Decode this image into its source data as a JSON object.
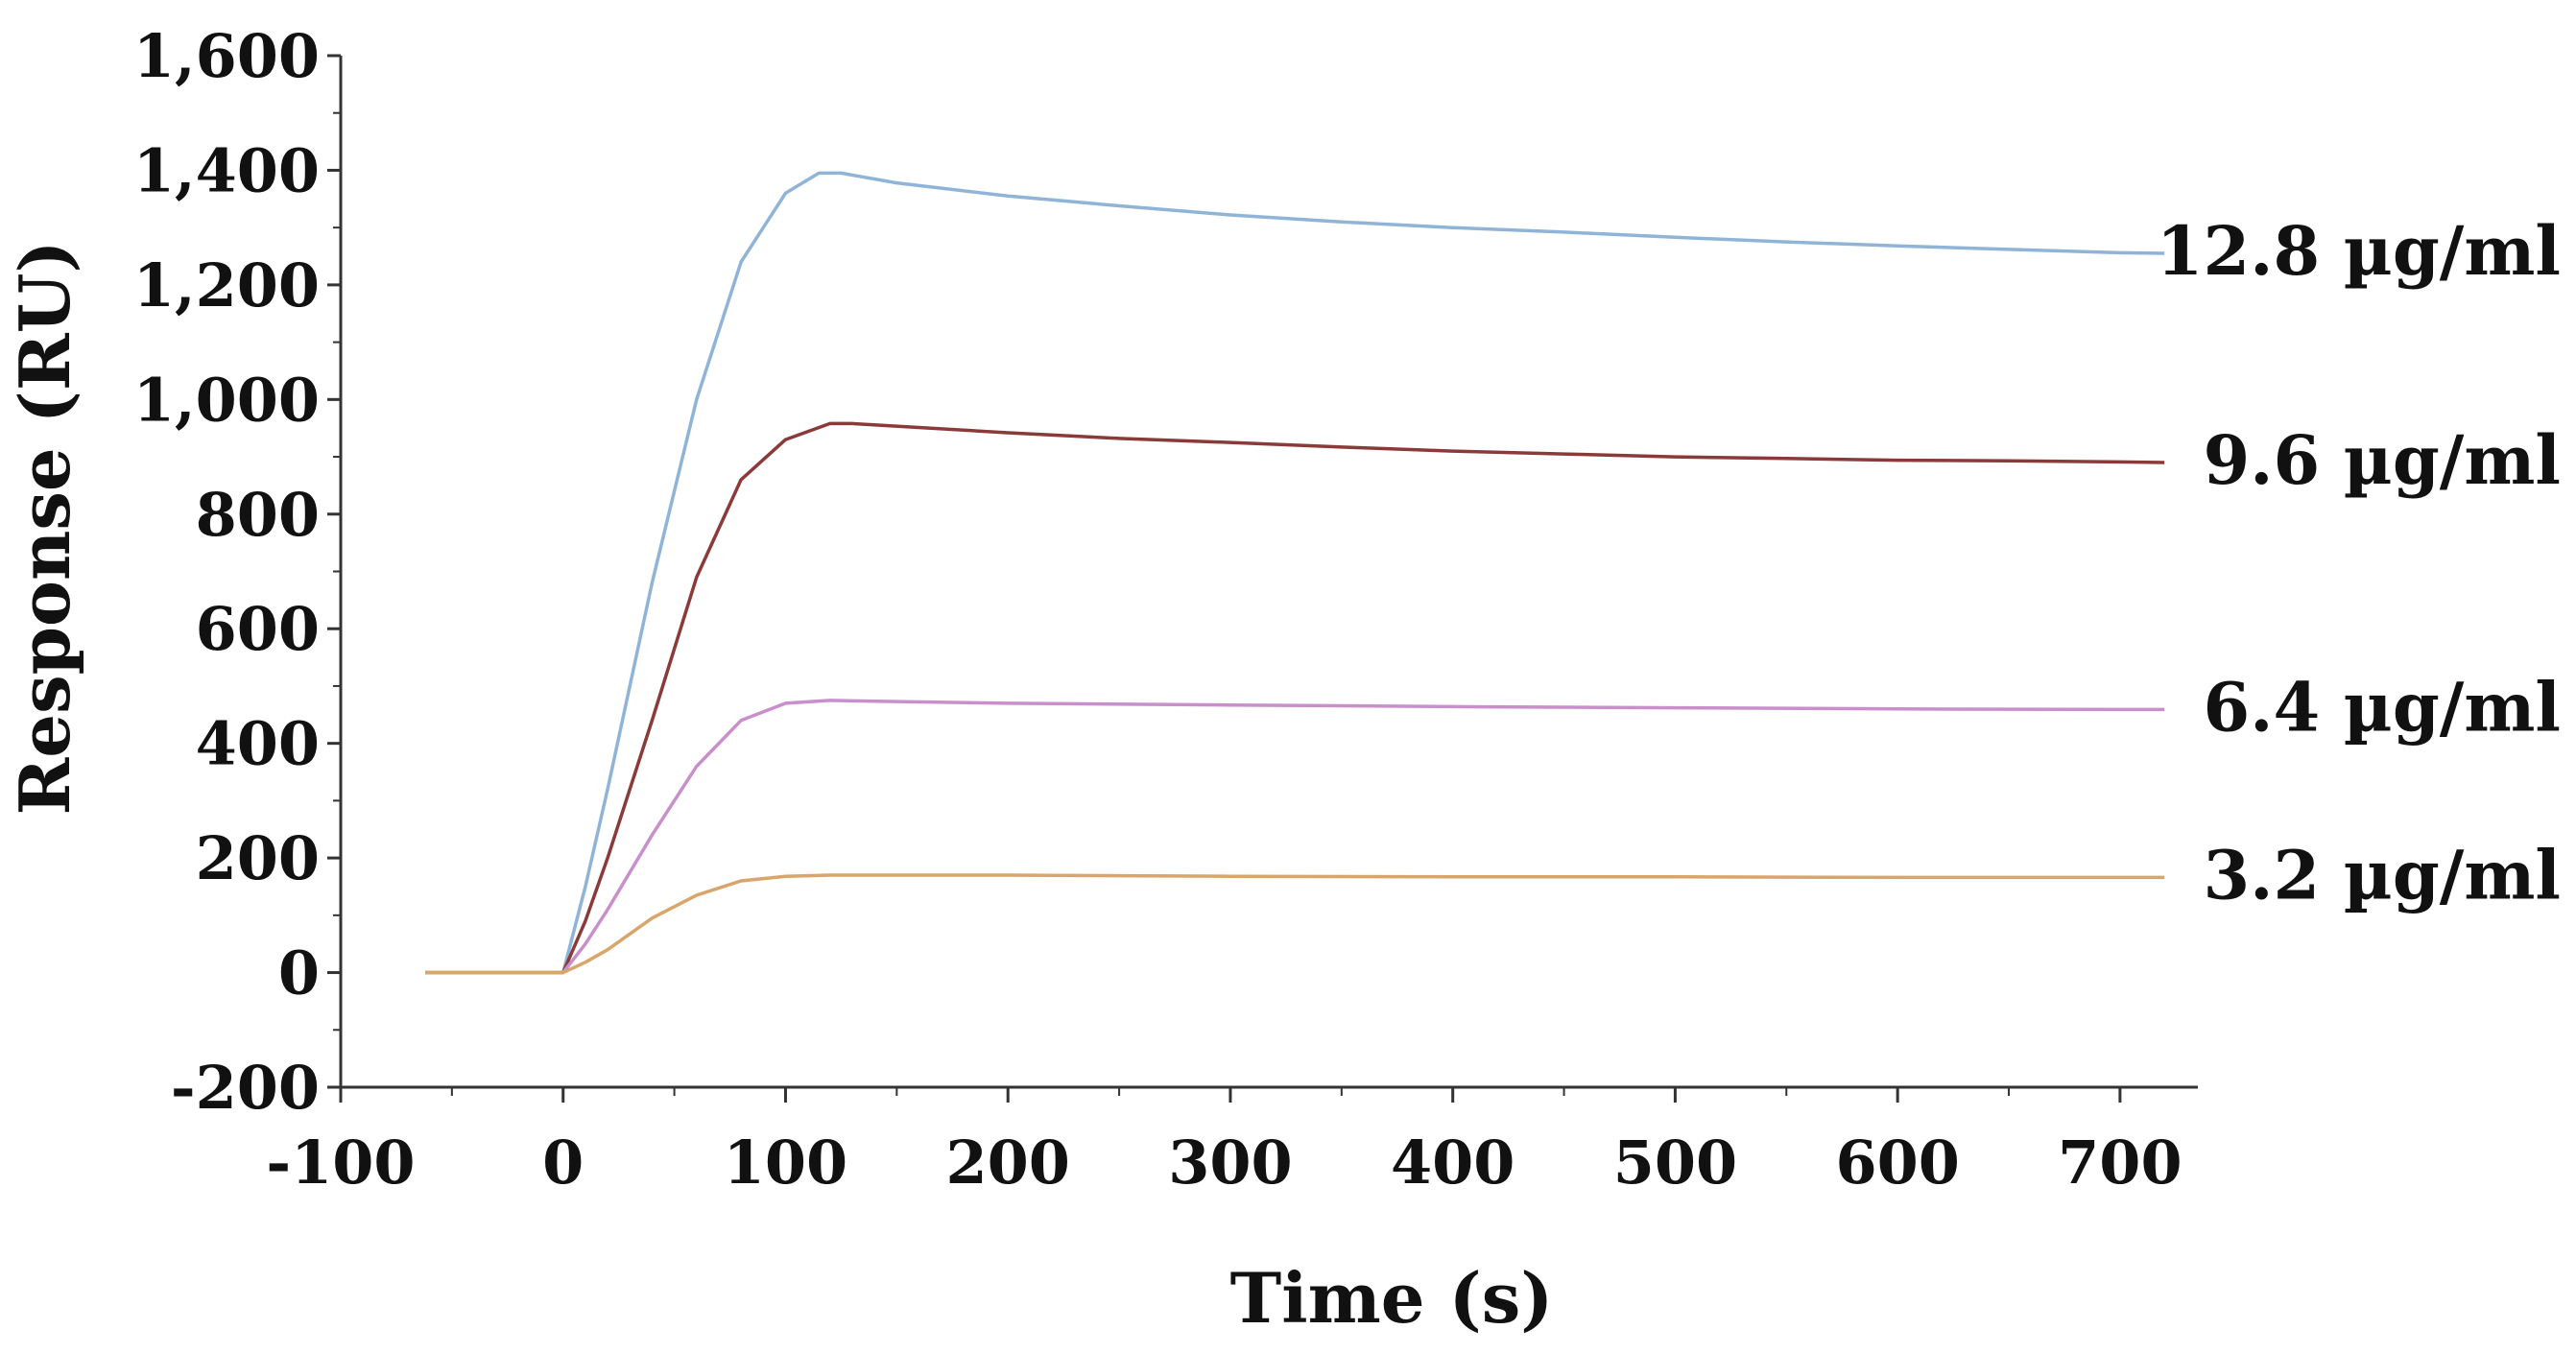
{
  "chart_data": {
    "type": "line",
    "title": "",
    "xlabel": "Time (s)",
    "ylabel": "Response (RU)",
    "xlim": [
      -100,
      735
    ],
    "ylim": [
      -200,
      1600
    ],
    "x_ticks": [
      -100,
      0,
      100,
      200,
      300,
      400,
      500,
      600,
      700
    ],
    "x_tick_labels": [
      "-100",
      "0",
      "100",
      "200",
      "300",
      "400",
      "500",
      "600",
      "700"
    ],
    "y_ticks": [
      -200,
      0,
      200,
      400,
      600,
      800,
      1000,
      1200,
      1400,
      1600
    ],
    "y_tick_labels": [
      "-200",
      "0",
      "200",
      "400",
      "600",
      "800",
      "1,000",
      "1,200",
      "1,400",
      "1,600"
    ],
    "grid": false,
    "legend": "inline-right",
    "series": [
      {
        "name": "12.8 µg/ml",
        "color": "#8fb4d8",
        "points": [
          [
            -62,
            0
          ],
          [
            0,
            0
          ],
          [
            10,
            150
          ],
          [
            20,
            320
          ],
          [
            40,
            680
          ],
          [
            60,
            1000
          ],
          [
            80,
            1240
          ],
          [
            100,
            1360
          ],
          [
            115,
            1395
          ],
          [
            125,
            1395
          ],
          [
            150,
            1378
          ],
          [
            200,
            1355
          ],
          [
            250,
            1338
          ],
          [
            300,
            1322
          ],
          [
            350,
            1310
          ],
          [
            400,
            1300
          ],
          [
            450,
            1292
          ],
          [
            500,
            1283
          ],
          [
            550,
            1275
          ],
          [
            600,
            1268
          ],
          [
            650,
            1262
          ],
          [
            700,
            1256
          ],
          [
            720,
            1255
          ]
        ]
      },
      {
        "name": "9.6 µg/ml",
        "color": "#8b3a3a",
        "points": [
          [
            -62,
            0
          ],
          [
            0,
            0
          ],
          [
            10,
            90
          ],
          [
            20,
            200
          ],
          [
            40,
            440
          ],
          [
            60,
            690
          ],
          [
            80,
            860
          ],
          [
            100,
            930
          ],
          [
            120,
            958
          ],
          [
            130,
            958
          ],
          [
            200,
            942
          ],
          [
            250,
            932
          ],
          [
            300,
            925
          ],
          [
            350,
            917
          ],
          [
            400,
            910
          ],
          [
            450,
            905
          ],
          [
            500,
            900
          ],
          [
            550,
            897
          ],
          [
            600,
            894
          ],
          [
            650,
            893
          ],
          [
            700,
            891
          ],
          [
            720,
            890
          ]
        ]
      },
      {
        "name": "6.4 µg/ml",
        "color": "#c88fcc",
        "points": [
          [
            -62,
            0
          ],
          [
            0,
            0
          ],
          [
            10,
            50
          ],
          [
            20,
            110
          ],
          [
            40,
            240
          ],
          [
            60,
            360
          ],
          [
            80,
            440
          ],
          [
            100,
            470
          ],
          [
            120,
            475
          ],
          [
            150,
            473
          ],
          [
            200,
            470
          ],
          [
            300,
            467
          ],
          [
            400,
            464
          ],
          [
            500,
            462
          ],
          [
            600,
            460
          ],
          [
            700,
            459
          ],
          [
            720,
            459
          ]
        ]
      },
      {
        "name": "3.2 µg/ml",
        "color": "#d9a56a",
        "points": [
          [
            -62,
            0
          ],
          [
            0,
            0
          ],
          [
            10,
            18
          ],
          [
            20,
            40
          ],
          [
            40,
            95
          ],
          [
            60,
            135
          ],
          [
            80,
            160
          ],
          [
            100,
            168
          ],
          [
            120,
            170
          ],
          [
            200,
            170
          ],
          [
            300,
            168
          ],
          [
            400,
            167
          ],
          [
            500,
            167
          ],
          [
            600,
            166
          ],
          [
            700,
            166
          ],
          [
            720,
            166
          ]
        ]
      }
    ]
  }
}
